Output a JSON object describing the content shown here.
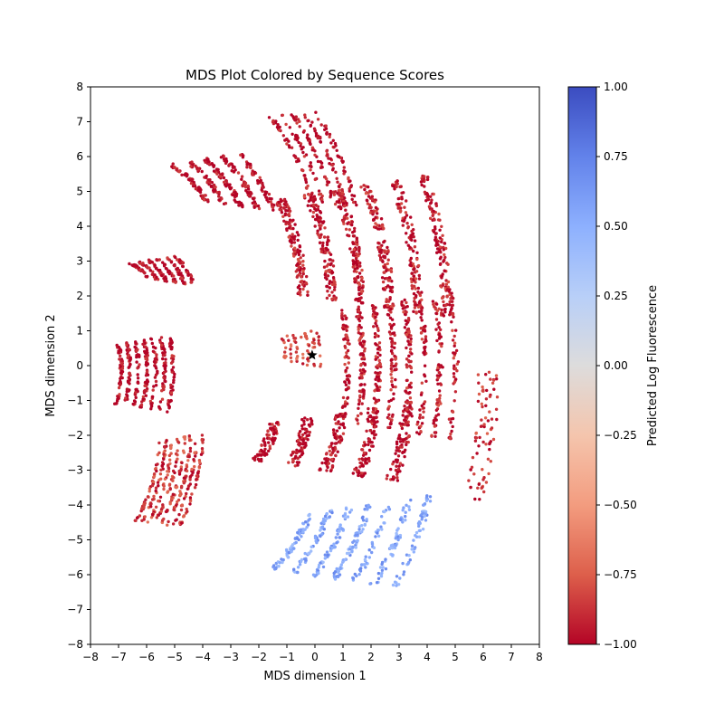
{
  "chart_data": {
    "type": "scatter",
    "title": "MDS Plot Colored by Sequence Scores",
    "xlabel": "MDS dimension 1",
    "ylabel": "MDS dimension 2",
    "xlim": [
      -8,
      8
    ],
    "ylim": [
      -8,
      8
    ],
    "xticks": [
      "−8",
      "−7",
      "−6",
      "−5",
      "−4",
      "−3",
      "−2",
      "−1",
      "0",
      "1",
      "2",
      "3",
      "4",
      "5",
      "6",
      "7",
      "8"
    ],
    "yticks": [
      "−8",
      "−7",
      "−6",
      "−5",
      "−4",
      "−3",
      "−2",
      "−1",
      "0",
      "1",
      "2",
      "3",
      "4",
      "5",
      "6",
      "7",
      "8"
    ],
    "grid": false,
    "colorbar": {
      "label": "Predicted Log Fluorescence",
      "colormap": "coolwarm",
      "range": [
        -1.0,
        1.0
      ],
      "ticks": [
        "−1.00",
        "−0.75",
        "−0.50",
        "−0.25",
        "0.00",
        "0.25",
        "0.50",
        "0.75",
        "1.00"
      ]
    },
    "reference_marker": {
      "shape": "star",
      "x": -0.1,
      "y": 0.3,
      "color": "#000000"
    },
    "clusters": [
      {
        "region": "outer-left-arc-top",
        "x_range": [
          -4.8,
          -1.7
        ],
        "y_range": [
          4.3,
          6.5
        ],
        "value": -1.0
      },
      {
        "region": "outer-left-arc-upper",
        "x_range": [
          -6.5,
          -4.5
        ],
        "y_range": [
          1.8,
          3.8
        ],
        "value": -1.0
      },
      {
        "region": "outer-left-arc-mid",
        "x_range": [
          -7.2,
          -5.0
        ],
        "y_range": [
          -2.0,
          1.5
        ],
        "value": -1.0
      },
      {
        "region": "outer-left-arc-lower",
        "x_range": [
          -6.0,
          -4.2
        ],
        "y_range": [
          -5.3,
          -1.5
        ],
        "value": -0.85
      },
      {
        "region": "top-right-arc",
        "x_range": [
          -0.9,
          1.1
        ],
        "y_range": [
          4.8,
          7.4
        ],
        "value": -1.0
      },
      {
        "region": "inner-upper-arcs",
        "x_range": [
          -1.2,
          5.1
        ],
        "y_range": [
          2.0,
          5.0
        ],
        "value": -0.95
      },
      {
        "region": "central-dense-cluster",
        "x_range": [
          -1.2,
          0.3
        ],
        "y_range": [
          0.0,
          1.0
        ],
        "value": -0.8
      },
      {
        "region": "inner-right-arcs",
        "x_range": [
          0.9,
          5.4
        ],
        "y_range": [
          -1.5,
          1.5
        ],
        "value": -0.95
      },
      {
        "region": "inner-lower-arcs",
        "x_range": [
          -2.3,
          3.8
        ],
        "y_range": [
          -3.0,
          -1.5
        ],
        "value": -1.0
      },
      {
        "region": "far-right-outliers",
        "x_range": [
          5.8,
          6.6
        ],
        "y_range": [
          -3.2,
          -1.0
        ],
        "value": -0.9
      },
      {
        "region": "bottom-blue-band",
        "x_range": [
          -1.1,
          4.0
        ],
        "y_range": [
          -6.1,
          -4.3
        ],
        "value": 0.55
      }
    ]
  }
}
